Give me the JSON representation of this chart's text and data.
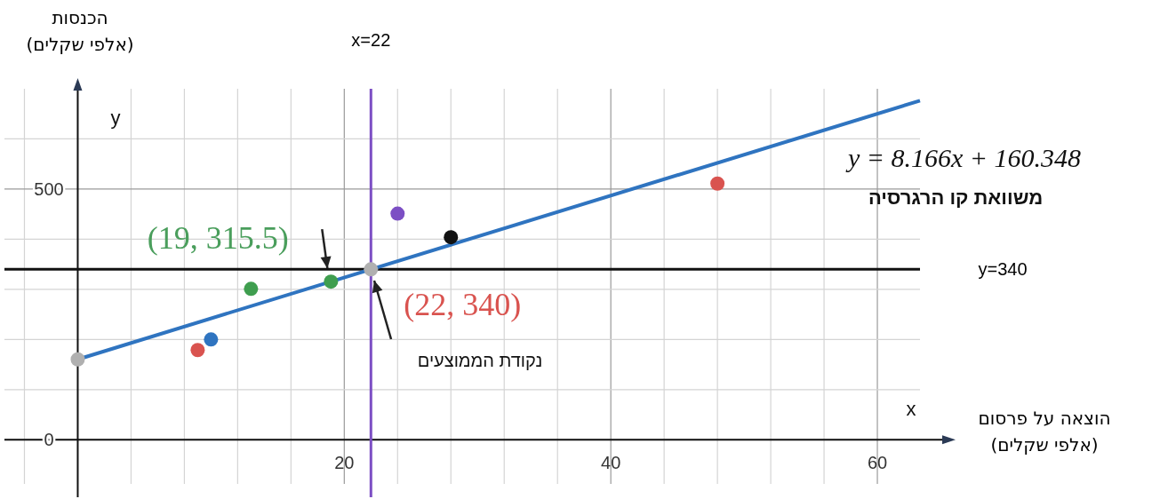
{
  "chart_data": {
    "type": "scatter",
    "xlabel": "הוצאה על פרסום\n(אלפי שקלים)",
    "ylabel": "הכנסות\n(אלפי שקלים)",
    "xlim": [
      -5.5,
      63.2
    ],
    "ylim": [
      -88,
      700
    ],
    "xticks": [
      {
        "value": -4,
        "label": null
      },
      {
        "value": 0,
        "label": null
      },
      {
        "value": 4,
        "label": null
      },
      {
        "value": 8,
        "label": null
      },
      {
        "value": 12,
        "label": null
      },
      {
        "value": 16,
        "label": null
      },
      20,
      {
        "value": 24,
        "label": null
      },
      {
        "value": 28,
        "label": null
      },
      {
        "value": 32,
        "label": null
      },
      {
        "value": 36,
        "label": null
      },
      40,
      {
        "value": 44,
        "label": null
      },
      {
        "value": 48,
        "label": null
      },
      {
        "value": 52,
        "label": null
      },
      {
        "value": 56,
        "label": null
      },
      60
    ],
    "yticks": [
      0,
      {
        "value": 100,
        "label": null
      },
      {
        "value": 200,
        "label": null
      },
      {
        "value": 300,
        "label": null
      },
      {
        "value": 400,
        "label": null
      },
      500,
      {
        "value": 600,
        "label": null
      }
    ],
    "grid": true,
    "series": [
      {
        "type": "line",
        "color": "#2f74c0",
        "x": [
          0,
          63.2
        ],
        "values": [
          160.348,
          676.4
        ]
      },
      {
        "marker": "circle",
        "x": [
          9,
          10,
          13,
          19,
          24,
          28,
          48,
          0,
          22
        ],
        "values": [
          179,
          200,
          301,
          315.5,
          451,
          404,
          511,
          160.348,
          340
        ],
        "colors": [
          "#d9534f",
          "#2f74c0",
          "#3f9e4f",
          "#3f9e4f",
          "#7c4fc4",
          "#111111",
          "#d9534f",
          "#b0b0b0",
          "#b0b0b0"
        ]
      }
    ],
    "ref_lines": [
      {
        "axis": "x",
        "value": 22,
        "label": "x=22",
        "color": "#7c4fc4"
      },
      {
        "axis": "y",
        "value": 340,
        "label": "y=340",
        "color": "#111111"
      }
    ],
    "annotations": [
      {
        "text": "(19, 315.5)",
        "x": 19,
        "y": 315.5
      },
      {
        "text": "(22, 340)",
        "x": 22,
        "y": 340
      },
      "נקודת הממוצעים",
      "y = 8.166x + 160.348",
      "משוואת קו הרגרסיה",
      "x",
      "y"
    ]
  }
}
